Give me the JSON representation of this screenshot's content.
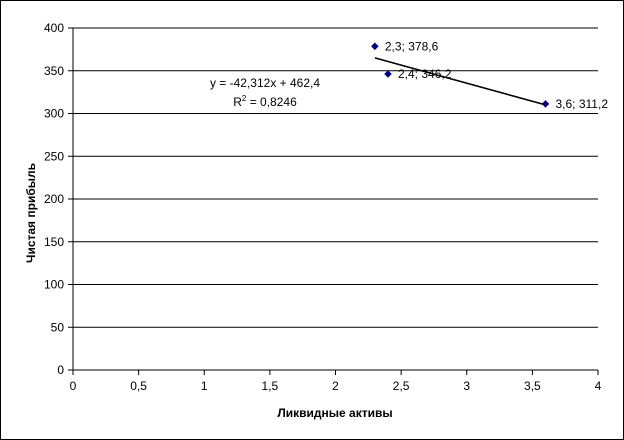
{
  "chart_data": {
    "type": "scatter",
    "xlabel": "Ликвидные активы",
    "ylabel": "Чистая прибыль",
    "xlim": [
      0,
      4
    ],
    "ylim": [
      0,
      400
    ],
    "x_ticks": [
      "0",
      "0,5",
      "1",
      "1,5",
      "2",
      "2,5",
      "3",
      "3,5",
      "4"
    ],
    "y_ticks": [
      "0",
      "50",
      "100",
      "150",
      "200",
      "250",
      "300",
      "350",
      "400"
    ],
    "grid": "horizontal",
    "legend": "none",
    "points": [
      {
        "x": 2.3,
        "y": 378.6,
        "label": "2,3; 378,6"
      },
      {
        "x": 2.4,
        "y": 346.2,
        "label": "2,4; 346,2"
      },
      {
        "x": 3.6,
        "y": 311.2,
        "label": "3,6; 311,2"
      }
    ],
    "trendline": {
      "x_range": [
        2.3,
        3.6
      ],
      "slope": -42.312,
      "intercept": 462.4,
      "equation": "y = -42,312x + 462,4",
      "r2_prefix": "R",
      "r2_exp": "2",
      "r2_value": " = 0,8246"
    },
    "marker_color": "#000080",
    "line_color": "#000000"
  }
}
